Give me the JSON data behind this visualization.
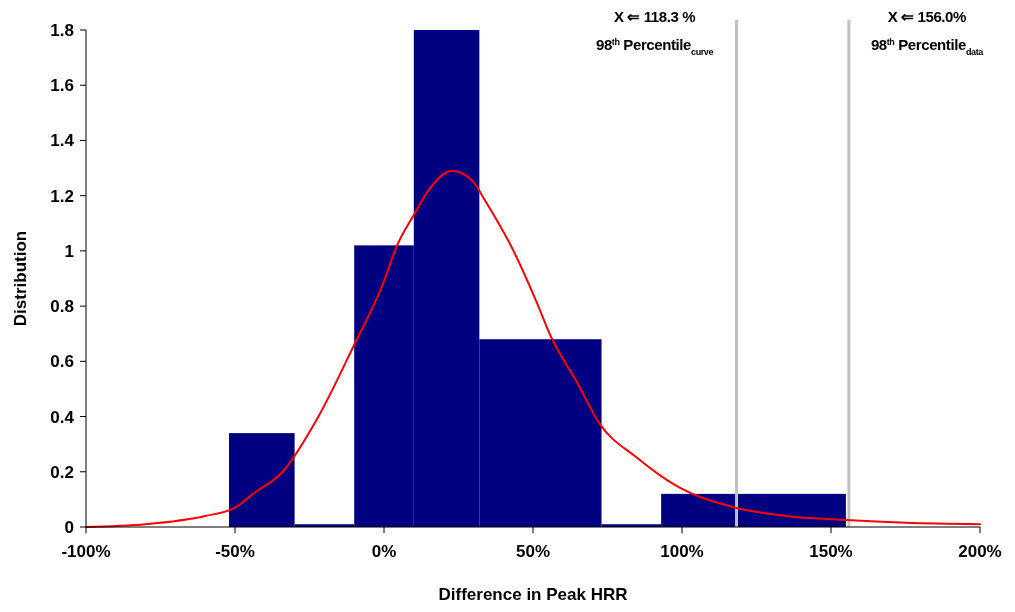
{
  "chart_data": {
    "type": "histogram",
    "xlabel": "Difference in Peak HRR",
    "ylabel": "Distribution",
    "bins": [
      -52,
      -30,
      -10,
      10,
      32,
      73,
      93,
      155
    ],
    "values": [
      0.34,
      0.01,
      1.02,
      1.8,
      0.68,
      0.01,
      0.12
    ],
    "color": "#000080",
    "series": [
      {
        "type": "line",
        "color": "#ff0000",
        "x": [
          -100,
          -80,
          -60,
          -50,
          -44,
          -34,
          -22,
          -10,
          0,
          4,
          10,
          15,
          22.8,
          30,
          33.5,
          43,
          51,
          56,
          65,
          72,
          85,
          98,
          118,
          135,
          155,
          175,
          200
        ],
        "values": [
          0,
          0.01,
          0.04,
          0.07,
          0.12,
          0.2,
          0.4,
          0.66,
          0.89,
          1.01,
          1.13,
          1.22,
          1.29,
          1.25,
          1.19,
          1.01,
          0.82,
          0.69,
          0.52,
          0.38,
          0.25,
          0.15,
          0.07,
          0.04,
          0.025,
          0.015,
          0.01
        ]
      }
    ],
    "xlim": [
      -100,
      200
    ],
    "xticks": [
      {
        "value": -100,
        "label": "-100%"
      },
      {
        "value": -50,
        "label": "-50%"
      },
      {
        "value": 0,
        "label": "0%"
      },
      {
        "value": 50,
        "label": "50%"
      },
      {
        "value": 100,
        "label": "100%"
      },
      {
        "value": 150,
        "label": "150%"
      },
      {
        "value": 200,
        "label": "200%"
      }
    ],
    "ylim": [
      0,
      1.8
    ],
    "yticks": [
      0,
      0.2,
      0.4,
      0.6,
      0.8,
      1,
      1.2,
      1.4,
      1.6,
      1.8
    ],
    "ref_lines": [
      {
        "axis": "x",
        "value": 118.3,
        "label": "X ⇐ 118.3 %\n98$^{th}$ Percentile$_{curve}$",
        "color": "#c0c0c0"
      },
      {
        "axis": "x",
        "value": 156.0,
        "label": "X ⇐ 156.0%\n98$^{th}$ Percentile$_{data}$",
        "color": "#c0c0c0"
      }
    ],
    "grid": false
  }
}
